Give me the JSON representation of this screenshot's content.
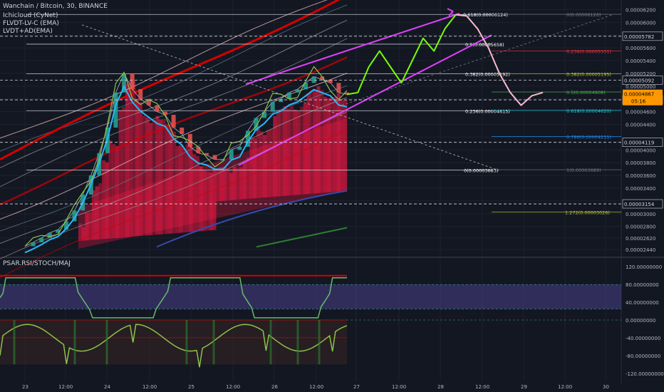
{
  "header": {
    "title": "Wanchain / Bitcoin, 30, BINANCE",
    "indicators": [
      "Ichicloud (CyNet)",
      "FLVDT-LV-C (EMA)",
      "LVDT+AD(EMA)"
    ]
  },
  "oscillator": {
    "title": "PSAR.RSI/STOCH/MAJ"
  },
  "colors": {
    "background": "#131722",
    "fib_white": "#d1d4dc",
    "fib_red": "#f23645",
    "fib_yellow": "#c0ca33",
    "fib_green": "#4caf50",
    "fib_teal": "#26c6da",
    "channel": "#e040fb",
    "projection_green": "#76ff03",
    "projection_pink": "#f8bbd0",
    "price_badge": "#ff9800",
    "cloud_red": "#ff1744"
  },
  "chart_data": [
    {
      "type": "line",
      "symbol": "Wanchain / Bitcoin",
      "interval": "30",
      "exchange": "BINANCE",
      "y_axis_ticks": [
        "0.00006200",
        "0.00006000",
        "0.00005800",
        "0.00005600",
        "0.00005400",
        "0.00005200",
        "0.00005000",
        "0.00004800",
        "0.00004600",
        "0.00004400",
        "0.00004200",
        "0.00004000",
        "0.00003800",
        "0.00003600",
        "0.00003400",
        "0.00003200",
        "0.00003000",
        "0.00002800",
        "0.00002620",
        "0.00002440"
      ],
      "ylim": [
        2.35e-05,
        6.35e-05
      ],
      "x_axis_ticks": [
        "23",
        "12:00",
        "24",
        "12:00",
        "25",
        "12:00",
        "26",
        "12:00",
        "27",
        "12:00",
        "28",
        "12:00",
        "29",
        "12:00",
        "30"
      ],
      "horizontal_levels": [
        "0.00005782",
        "0.00005092",
        "0.00004785",
        "0.00004119",
        "0.00003154"
      ],
      "current_price": {
        "label": "0.00004867",
        "sub": "05:16"
      },
      "fib_left": [
        {
          "label": "0.618(0.00006124)",
          "value": 6.124e-05
        },
        {
          "label": "0.5(0.00005658)",
          "value": 5.658e-05
        },
        {
          "label": "0.382(0.00005192)",
          "value": 5.192e-05
        },
        {
          "label": "0.236(0.00004615)",
          "value": 4.615e-05
        },
        {
          "label": "0(0.00003683)",
          "value": 3.683e-05
        }
      ],
      "fib_right": [
        {
          "label": "0(0.00006126)",
          "value": 6.126e-05
        },
        {
          "label": "0.236(0.00005551)",
          "value": 5.551e-05
        },
        {
          "label": "0.382(0.00005195)",
          "value": 5.195e-05
        },
        {
          "label": "0.5(0.00004908)",
          "value": 4.908e-05
        },
        {
          "label": "0.618(0.00004620)",
          "value": 4.62e-05
        },
        {
          "label": "0.786(0.00004211)",
          "value": 4.211e-05
        },
        {
          "label": "1(0.00003689)",
          "value": 3.689e-05
        },
        {
          "label": "1.272(0.00003026)",
          "value": 3.026e-05
        }
      ],
      "series": [
        {
          "values": [
            2.49,
            2.55,
            2.62,
            2.7,
            2.75,
            2.88,
            3.05,
            3.3,
            3.6,
            3.95,
            4.35,
            4.9,
            5.2,
            4.95,
            4.8,
            4.7,
            4.6,
            4.55,
            4.35,
            4.25,
            4.05,
            3.95,
            3.92,
            3.85,
            3.85,
            4.0,
            4.05,
            4.3,
            4.5,
            4.6,
            4.75,
            4.8,
            4.9,
            4.95,
            5.05,
            5.15,
            5.1,
            5.05,
            4.9,
            4.87
          ]
        }
      ],
      "projection": [
        4.87,
        4.9,
        5.3,
        5.55,
        5.3,
        5.05,
        5.4,
        5.75,
        5.55,
        5.9,
        6.12,
        6.1,
        5.9,
        5.6,
        5.2,
        4.9,
        4.7,
        4.85,
        4.9
      ]
    },
    {
      "type": "line",
      "title": "PSAR.RSI/STOCH/MAJ",
      "y_axis_ticks": [
        "120.00000000",
        "80.00000000",
        "40.00000000",
        "0.00000000",
        "-40.00000000",
        "-80.00000000",
        "-120.00000000"
      ],
      "ylim": [
        -130,
        130
      ]
    }
  ]
}
